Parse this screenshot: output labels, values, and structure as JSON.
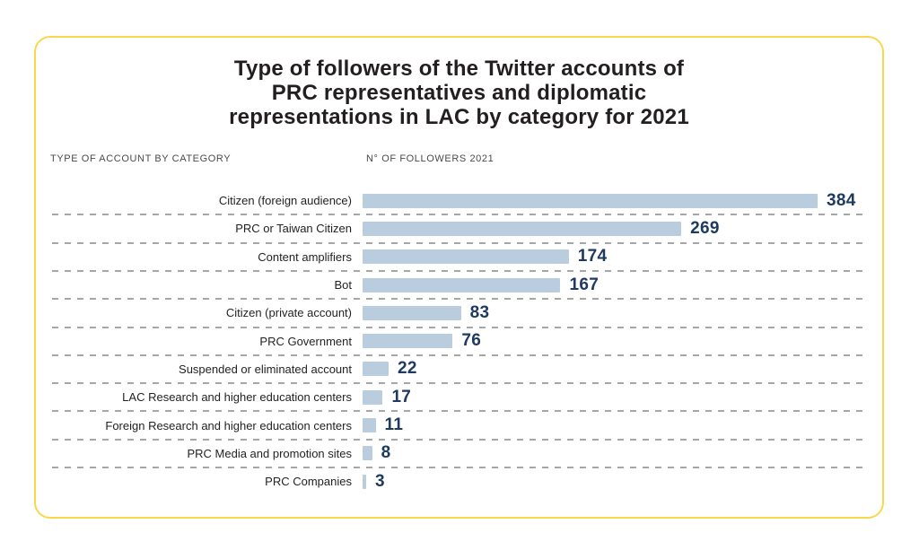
{
  "chart_data": {
    "type": "bar",
    "orientation": "horizontal",
    "title": "Type of followers of the Twitter accounts of PRC representatives and diplomatic representations in LAC by category for 2021",
    "title_lines": [
      "Type of followers of the Twitter accounts of",
      "PRC representatives and diplomatic",
      "representations in LAC by category for 2021"
    ],
    "column_headers": {
      "left": "TYPE OF ACCOUNT BY CATEGORY",
      "right": "N° OF FOLLOWERS 2021"
    },
    "categories": [
      "Citizen (foreign audience)",
      "PRC or Taiwan Citizen",
      "Content amplifiers",
      "Bot",
      "Citizen (private account)",
      "PRC Government",
      "Suspended or eliminated account",
      "LAC Research and higher education centers",
      "Foreign Research and higher education centers",
      "PRC Media and promotion sites",
      "PRC Companies"
    ],
    "values": [
      384,
      269,
      174,
      167,
      83,
      76,
      22,
      17,
      11,
      8,
      3
    ],
    "xlim": [
      0,
      384
    ],
    "value_labels_shown": true,
    "legend": "none",
    "grid": "dashed horizontal separators between rows",
    "colors": {
      "bar": "#b9cdde",
      "value_text": "#1f3a60",
      "label_text": "#232323",
      "header_text": "#4a4a4a",
      "title_text": "#231f20",
      "card_border": "#f8d84b",
      "separator": "#a6a6a6",
      "background": "#ffffff"
    }
  }
}
